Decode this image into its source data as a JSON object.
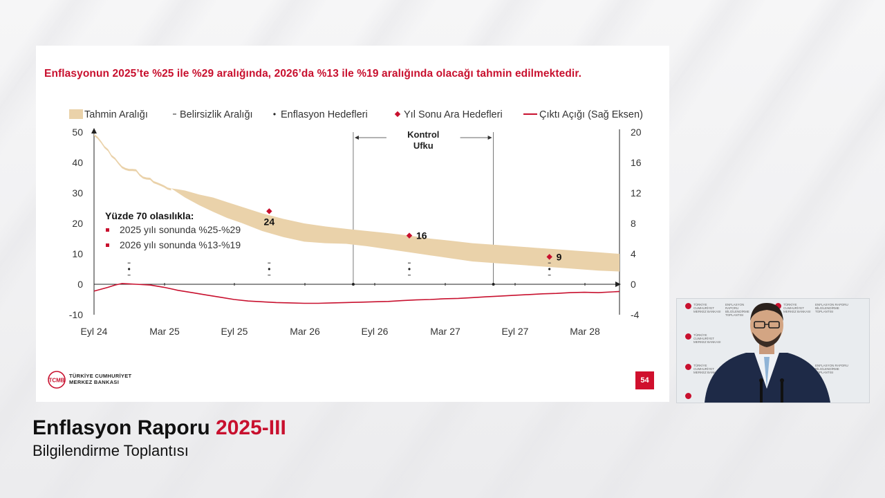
{
  "slide": {
    "headline": "Enflasyonun 2025’te %25 ile %29 aralığında, 2026’da %13 ile %19 aralığında olacağı tahmin edilmektedir.",
    "page_number": "54",
    "logo_line1": "TÜRKİYE CUMHURİYET",
    "logo_line2": "MERKEZ BANKASI",
    "logo_mark": "TCMB"
  },
  "footer": {
    "title": "Enflasyon Raporu",
    "title_highlight": "2025-III",
    "subtitle": "Bilgilendirme Toplantısı"
  },
  "video": {
    "wall_text_1": "TÜRKİYE CUMHURİYET MERKEZ BANKASI",
    "wall_text_2": "ENFLASYON RAPORU BİLGİLENDİRME TOPLANTISI"
  },
  "colors": {
    "brand_red": "#c8102e",
    "band": "#ead2aa",
    "output_gap_line": "#c8102e",
    "axis": "#222222"
  },
  "chart_data": {
    "type": "area",
    "legend_position": "top",
    "legend": [
      {
        "label": "Tahmin Aralığı",
        "marker": "band"
      },
      {
        "label": "Belirsizlik Aralığı",
        "marker": "dash"
      },
      {
        "label": "Enflasyon Hedefleri",
        "marker": "dot"
      },
      {
        "label": "Yıl Sonu Ara Hedefleri",
        "marker": "red-diamond"
      },
      {
        "label": "Çıktı Açığı (Sağ Eksen)",
        "marker": "red-line"
      }
    ],
    "x_ticks": [
      "Eyl 24",
      "Mar 25",
      "Eyl 25",
      "Mar 26",
      "Eyl 26",
      "Mar 27",
      "Eyl 27",
      "Mar 28"
    ],
    "left_axis": {
      "ticks": [
        50,
        40,
        30,
        20,
        10,
        0,
        -10
      ],
      "ylim": [
        -10,
        50
      ]
    },
    "right_axis": {
      "ticks": [
        20,
        16,
        12,
        8,
        4,
        0,
        -4
      ],
      "ylim": [
        -4,
        20
      ]
    },
    "grid": false,
    "inflation_actual": {
      "x": [
        0,
        0.5,
        1,
        1.5,
        2,
        2.5,
        3,
        3.5,
        4,
        4.5,
        5,
        5.5,
        6,
        6.5,
        7,
        7.5,
        8,
        8.5,
        9,
        9.5,
        10,
        10.5,
        11
      ],
      "y": [
        49.4,
        48.5,
        47.1,
        45.4,
        44.4,
        42.5,
        41.6,
        40.1,
        38.8,
        38.2,
        37.9,
        37.9,
        37.8,
        36.3,
        35.4,
        35.1,
        35.0,
        33.9,
        33.5,
        33.0,
        32.5,
        31.8,
        31.5
      ]
    },
    "forecast_band": {
      "x": [
        11,
        12,
        13,
        15,
        17,
        19,
        21,
        24,
        27,
        30,
        33,
        36,
        39,
        42,
        45,
        48,
        51,
        54,
        57,
        60,
        63,
        66,
        69,
        72,
        75
      ],
      "lower": [
        31.5,
        30.0,
        28.5,
        26.0,
        23.8,
        21.8,
        20.2,
        17.5,
        15.5,
        14.0,
        13.5,
        13.3,
        12.5,
        11.5,
        10.5,
        9.5,
        8.5,
        7.5,
        7.0,
        6.5,
        6.0,
        5.5,
        5.0,
        4.5,
        4.2
      ],
      "upper": [
        31.5,
        31.2,
        30.8,
        29.5,
        28.5,
        27.0,
        25.5,
        23.3,
        21.5,
        20.0,
        19.0,
        18.2,
        17.5,
        16.8,
        16.0,
        15.0,
        14.3,
        13.5,
        13.0,
        12.5,
        12.0,
        11.5,
        11.0,
        10.5,
        10.0
      ]
    },
    "year_end_targets": [
      {
        "x": 25,
        "y": 24,
        "label": "24"
      },
      {
        "x": 45,
        "y": 16,
        "label": "16"
      },
      {
        "x": 65,
        "y": 9,
        "label": "9"
      }
    ],
    "inflation_targets": [
      {
        "x": 5,
        "y": 5
      },
      {
        "x": 25,
        "y": 5
      },
      {
        "x": 45,
        "y": 5
      },
      {
        "x": 65,
        "y": 5
      }
    ],
    "uncertainty_marks": [
      {
        "x": 5,
        "values": [
          7,
          3
        ]
      },
      {
        "x": 25,
        "values": [
          7,
          3
        ]
      },
      {
        "x": 45,
        "values": [
          7,
          3
        ]
      },
      {
        "x": 65,
        "values": [
          7,
          3
        ]
      }
    ],
    "output_gap": {
      "axis": "right",
      "x": [
        0,
        2,
        3,
        4,
        5,
        6,
        8,
        10,
        12,
        14,
        16,
        18,
        20,
        22,
        24,
        26,
        28,
        30,
        32,
        34,
        36,
        38,
        40,
        42,
        44,
        46,
        48,
        50,
        52,
        54,
        56,
        58,
        60,
        62,
        64,
        66,
        68,
        70,
        72,
        74,
        75
      ],
      "y": [
        -0.9,
        -0.4,
        -0.1,
        0.1,
        0.05,
        0.0,
        -0.1,
        -0.4,
        -0.8,
        -1.1,
        -1.4,
        -1.7,
        -2.0,
        -2.2,
        -2.3,
        -2.4,
        -2.45,
        -2.5,
        -2.5,
        -2.45,
        -2.4,
        -2.35,
        -2.3,
        -2.25,
        -2.15,
        -2.05,
        -2.0,
        -1.9,
        -1.85,
        -1.75,
        -1.65,
        -1.55,
        -1.45,
        -1.35,
        -1.25,
        -1.2,
        -1.1,
        -1.05,
        -1.1,
        -1.0,
        -0.95
      ]
    },
    "control_horizon": {
      "label_line1": "Kontrol",
      "label_line2": "Ufku",
      "x_start": 37,
      "x_end": 57
    },
    "annotation": {
      "title": "Yüzde 70 olasılıkla:",
      "items": [
        "2025 yılı sonunda %25-%29",
        "2026 yılı sonunda %13-%19"
      ]
    }
  }
}
